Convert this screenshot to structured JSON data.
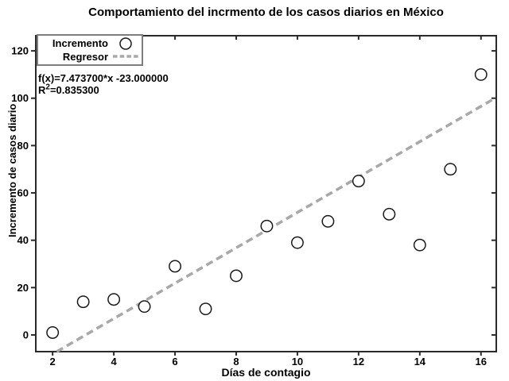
{
  "chart_data": {
    "type": "scatter",
    "title": "Comportamiento del incrmento de los casos diarios en México",
    "xlabel": "Días de contagio",
    "ylabel": "Incremento de casos diario",
    "x": [
      2,
      3,
      4,
      5,
      6,
      7,
      8,
      9,
      10,
      11,
      12,
      13,
      14,
      15,
      16
    ],
    "y": [
      1,
      14,
      15,
      12,
      29,
      11,
      25,
      46,
      39,
      48,
      65,
      51,
      38,
      70,
      110
    ],
    "series": [
      {
        "name": "Incremento",
        "type": "scatter",
        "marker": "open-circle"
      },
      {
        "name": "Regresor",
        "type": "line",
        "style": "dashed"
      }
    ],
    "fit": {
      "slope": 7.4737,
      "intercept": -23.0,
      "equation_text": "f(x)=7.473700*x -23.000000",
      "r2_base": "R",
      "r2_sup": "2",
      "r2_rest": "=0.835300"
    },
    "x_ticks": [
      2,
      4,
      6,
      8,
      10,
      12,
      14,
      16
    ],
    "x_tick_labels": [
      "2",
      "4",
      "6",
      "8",
      "10",
      "12",
      "14",
      "16"
    ],
    "y_ticks": [
      0,
      20,
      40,
      60,
      80,
      100,
      120
    ],
    "y_tick_labels": [
      "0",
      "20",
      "40",
      "60",
      "80",
      "100",
      "120"
    ],
    "xlim": [
      1.45,
      16.5
    ],
    "ylim": [
      -7.05,
      126.4
    ],
    "grid": false,
    "legend": {
      "position": "top-left",
      "entries": [
        {
          "label": "Incremento",
          "marker": "circle-marker"
        },
        {
          "label": "Regresor",
          "marker": "dashed-line-marker"
        }
      ]
    },
    "colors": {
      "axis": "#2b2b2b",
      "text": "#000000",
      "marker_stroke": "#1a1a1a",
      "marker_fill": "#ffffff",
      "regression_line": "#a8a8a8",
      "legend_border": "#7d7d7d",
      "background": "#ffffff"
    }
  }
}
